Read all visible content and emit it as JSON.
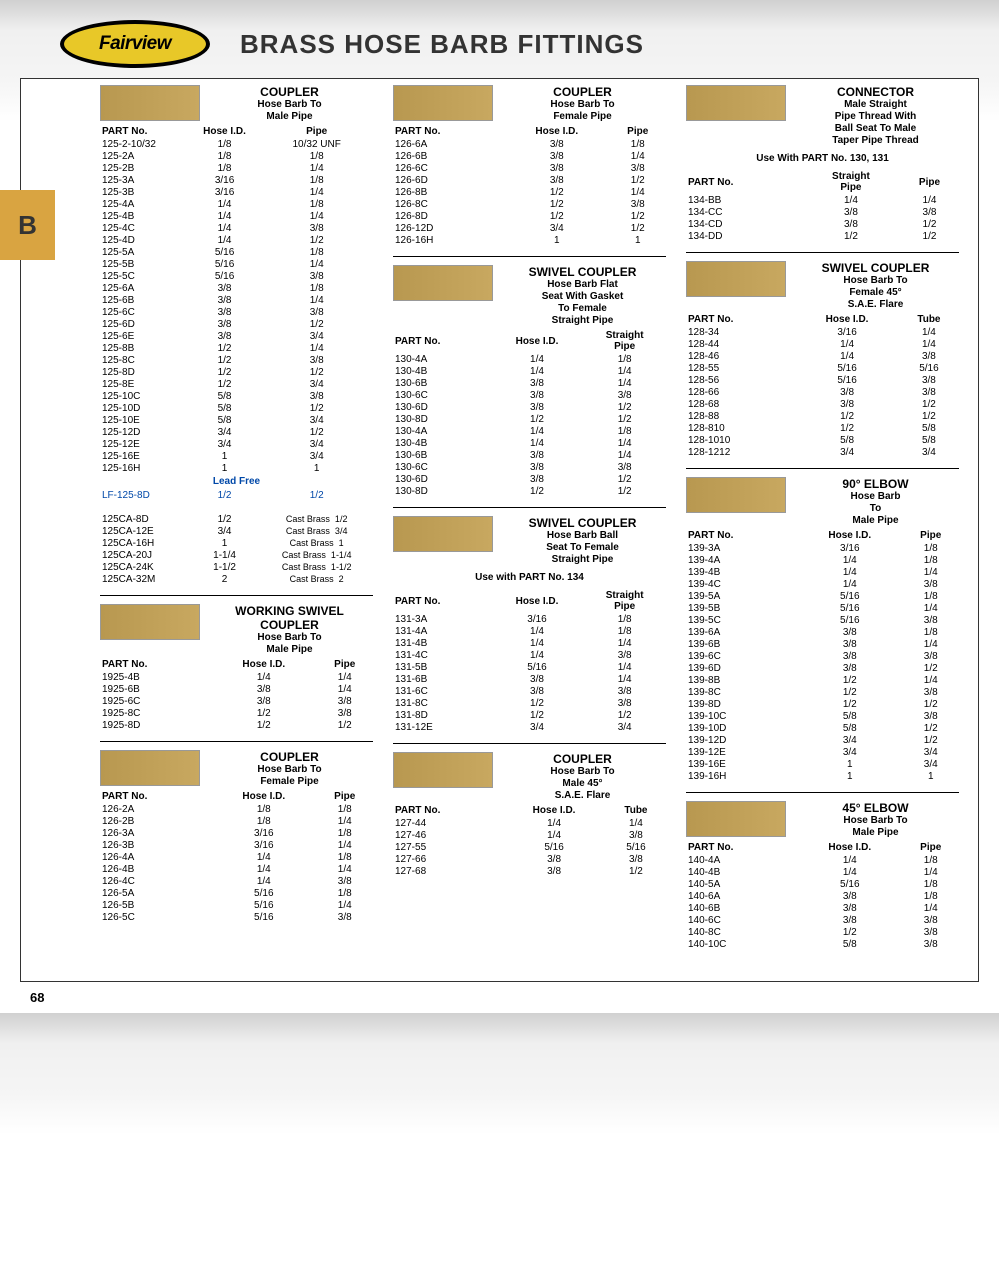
{
  "logo": "Fairview",
  "pageTitle": "BRASS HOSE BARB FITTINGS",
  "tab": "B",
  "pageNum": "68",
  "s1": {
    "t1": "COUPLER",
    "t2": "Hose Barb To\nMale  Pipe",
    "cols": [
      "PART No.",
      "Hose I.D.",
      "Pipe"
    ],
    "rows": [
      [
        "125-2-10/32",
        "1/8",
        "10/32 UNF"
      ],
      [
        "125-2A",
        "1/8",
        "1/8"
      ],
      [
        "125-2B",
        "1/8",
        "1/4"
      ],
      [
        "125-3A",
        "3/16",
        "1/8"
      ],
      [
        "125-3B",
        "3/16",
        "1/4"
      ],
      [
        "125-4A",
        "1/4",
        "1/8"
      ],
      [
        "125-4B",
        "1/4",
        "1/4"
      ],
      [
        "125-4C",
        "1/4",
        "3/8"
      ],
      [
        "125-4D",
        "1/4",
        "1/2"
      ],
      [
        "125-5A",
        "5/16",
        "1/8"
      ],
      [
        "125-5B",
        "5/16",
        "1/4"
      ],
      [
        "125-5C",
        "5/16",
        "3/8"
      ],
      [
        "125-6A",
        "3/8",
        "1/8"
      ],
      [
        "125-6B",
        "3/8",
        "1/4"
      ],
      [
        "125-6C",
        "3/8",
        "3/8"
      ],
      [
        "125-6D",
        "3/8",
        "1/2"
      ],
      [
        "125-6E",
        "3/8",
        "3/4"
      ],
      [
        "125-8B",
        "1/2",
        "1/4"
      ],
      [
        "125-8C",
        "1/2",
        "3/8"
      ],
      [
        "125-8D",
        "1/2",
        "1/2"
      ],
      [
        "125-8E",
        "1/2",
        "3/4"
      ],
      [
        "125-10C",
        "5/8",
        "3/8"
      ],
      [
        "125-10D",
        "5/8",
        "1/2"
      ],
      [
        "125-10E",
        "5/8",
        "3/4"
      ],
      [
        "125-12D",
        "3/4",
        "1/2"
      ],
      [
        "125-12E",
        "3/4",
        "3/4"
      ],
      [
        "125-16E",
        "1",
        "3/4"
      ],
      [
        "125-16H",
        "1",
        "1"
      ]
    ],
    "lfHead": "Lead Free",
    "lf": [
      [
        "LF-125-8D",
        "1/2",
        "1/2"
      ]
    ],
    "cast": [
      [
        "125CA-8D",
        "1/2",
        "Cast Brass",
        "1/2"
      ],
      [
        "125CA-12E",
        "3/4",
        "Cast Brass",
        "3/4"
      ],
      [
        "125CA-16H",
        "1",
        "Cast Brass",
        "1"
      ],
      [
        "125CA-20J",
        "1-1/4",
        "Cast Brass",
        "1-1/4"
      ],
      [
        "125CA-24K",
        "1-1/2",
        "Cast Brass",
        "1-1/2"
      ],
      [
        "125CA-32M",
        "2",
        "Cast Brass",
        "2"
      ]
    ]
  },
  "s2": {
    "t1": "WORKING SWIVEL COUPLER",
    "t2": "Hose Barb To\nMale  Pipe",
    "cols": [
      "PART No.",
      "Hose I.D.",
      "Pipe"
    ],
    "rows": [
      [
        "1925-4B",
        "1/4",
        "1/4"
      ],
      [
        "1925-6B",
        "3/8",
        "1/4"
      ],
      [
        "1925-6C",
        "3/8",
        "3/8"
      ],
      [
        "1925-8C",
        "1/2",
        "3/8"
      ],
      [
        "1925-8D",
        "1/2",
        "1/2"
      ]
    ]
  },
  "s3": {
    "t1": "COUPLER",
    "t2": "Hose Barb To\nFemale  Pipe",
    "cols": [
      "PART No.",
      "Hose I.D.",
      "Pipe"
    ],
    "rows": [
      [
        "126-2A",
        "1/8",
        "1/8"
      ],
      [
        "126-2B",
        "1/8",
        "1/4"
      ],
      [
        "126-3A",
        "3/16",
        "1/8"
      ],
      [
        "126-3B",
        "3/16",
        "1/4"
      ],
      [
        "126-4A",
        "1/4",
        "1/8"
      ],
      [
        "126-4B",
        "1/4",
        "1/4"
      ],
      [
        "126-4C",
        "1/4",
        "3/8"
      ],
      [
        "126-5A",
        "5/16",
        "1/8"
      ],
      [
        "126-5B",
        "5/16",
        "1/4"
      ],
      [
        "126-5C",
        "5/16",
        "3/8"
      ]
    ]
  },
  "s4": {
    "t1": "COUPLER",
    "t2": "Hose Barb To\nFemale  Pipe",
    "cols": [
      "PART No.",
      "Hose I.D.",
      "Pipe"
    ],
    "rows": [
      [
        "126-6A",
        "3/8",
        "1/8"
      ],
      [
        "126-6B",
        "3/8",
        "1/4"
      ],
      [
        "126-6C",
        "3/8",
        "3/8"
      ],
      [
        "126-6D",
        "3/8",
        "1/2"
      ],
      [
        "126-8B",
        "1/2",
        "1/4"
      ],
      [
        "126-8C",
        "1/2",
        "3/8"
      ],
      [
        "126-8D",
        "1/2",
        "1/2"
      ],
      [
        "126-12D",
        "3/4",
        "1/2"
      ],
      [
        "126-16H",
        "1",
        "1"
      ]
    ]
  },
  "s5": {
    "t1": "SWIVEL COUPLER",
    "t2": "Hose Barb Flat\nSeat With Gasket\nTo Female\nStraight Pipe",
    "cols": [
      "PART No.",
      "Hose I.D.",
      "Straight\nPipe"
    ],
    "rows": [
      [
        "130-4A",
        "1/4",
        "1/8"
      ],
      [
        "130-4B",
        "1/4",
        "1/4"
      ],
      [
        "130-6B",
        "3/8",
        "1/4"
      ],
      [
        "130-6C",
        "3/8",
        "3/8"
      ],
      [
        "130-6D",
        "3/8",
        "1/2"
      ],
      [
        "130-8D",
        "1/2",
        "1/2"
      ],
      [
        "130-4A",
        "1/4",
        "1/8"
      ],
      [
        "130-4B",
        "1/4",
        "1/4"
      ],
      [
        "130-6B",
        "3/8",
        "1/4"
      ],
      [
        "130-6C",
        "3/8",
        "3/8"
      ],
      [
        "130-6D",
        "3/8",
        "1/2"
      ],
      [
        "130-8D",
        "1/2",
        "1/2"
      ]
    ]
  },
  "s6": {
    "t1": "SWIVEL COUPLER",
    "t2": "Hose Barb Ball\nSeat To Female\nStraight Pipe",
    "note": "Use with PART No. 134",
    "cols": [
      "PART No.",
      "Hose I.D.",
      "Straight\nPipe"
    ],
    "rows": [
      [
        "131-3A",
        "3/16",
        "1/8"
      ],
      [
        "131-4A",
        "1/4",
        "1/8"
      ],
      [
        "131-4B",
        "1/4",
        "1/4"
      ],
      [
        "131-4C",
        "1/4",
        "3/8"
      ],
      [
        "131-5B",
        "5/16",
        "1/4"
      ],
      [
        "131-6B",
        "3/8",
        "1/4"
      ],
      [
        "131-6C",
        "3/8",
        "3/8"
      ],
      [
        "131-8C",
        "1/2",
        "3/8"
      ],
      [
        "131-8D",
        "1/2",
        "1/2"
      ],
      [
        "131-12E",
        "3/4",
        "3/4"
      ]
    ]
  },
  "s7": {
    "t1": "COUPLER",
    "t2": "Hose Barb To\nMale 45°\nS.A.E. Flare",
    "cols": [
      "PART No.",
      "Hose I.D.",
      "Tube"
    ],
    "rows": [
      [
        "127-44",
        "1/4",
        "1/4"
      ],
      [
        "127-46",
        "1/4",
        "3/8"
      ],
      [
        "127-55",
        "5/16",
        "5/16"
      ],
      [
        "127-66",
        "3/8",
        "3/8"
      ],
      [
        "127-68",
        "3/8",
        "1/2"
      ]
    ]
  },
  "s8": {
    "t1": "CONNECTOR",
    "t2": "Male Straight\nPipe Thread With\nBall Seat To Male\nTaper Pipe Thread",
    "note": "Use With PART No. 130, 131",
    "cols": [
      "PART No.",
      "Straight\nPipe",
      "Pipe"
    ],
    "rows": [
      [
        "134-BB",
        "1/4",
        "1/4"
      ],
      [
        "134-CC",
        "3/8",
        "3/8"
      ],
      [
        "134-CD",
        "3/8",
        "1/2"
      ],
      [
        "134-DD",
        "1/2",
        "1/2"
      ]
    ]
  },
  "s9": {
    "t1": "SWIVEL COUPLER",
    "t2": "Hose Barb To\nFemale 45°\nS.A.E. Flare",
    "cols": [
      "PART No.",
      "Hose I.D.",
      "Tube"
    ],
    "rows": [
      [
        "128-34",
        "3/16",
        "1/4"
      ],
      [
        "128-44",
        "1/4",
        "1/4"
      ],
      [
        "128-46",
        "1/4",
        "3/8"
      ],
      [
        "128-55",
        "5/16",
        "5/16"
      ],
      [
        "128-56",
        "5/16",
        "3/8"
      ],
      [
        "128-66",
        "3/8",
        "3/8"
      ],
      [
        "128-68",
        "3/8",
        "1/2"
      ],
      [
        "128-88",
        "1/2",
        "1/2"
      ],
      [
        "128-810",
        "1/2",
        "5/8"
      ],
      [
        "128-1010",
        "5/8",
        "5/8"
      ],
      [
        "128-1212",
        "3/4",
        "3/4"
      ]
    ]
  },
  "s10": {
    "t1": "90° ELBOW",
    "t2": "Hose Barb\nTo\nMale  Pipe",
    "cols": [
      "PART No.",
      "Hose I.D.",
      "Pipe"
    ],
    "rows": [
      [
        "139-3A",
        "3/16",
        "1/8"
      ],
      [
        "139-4A",
        "1/4",
        "1/8"
      ],
      [
        "139-4B",
        "1/4",
        "1/4"
      ],
      [
        "139-4C",
        "1/4",
        "3/8"
      ],
      [
        "139-5A",
        "5/16",
        "1/8"
      ],
      [
        "139-5B",
        "5/16",
        "1/4"
      ],
      [
        "139-5C",
        "5/16",
        "3/8"
      ],
      [
        "139-6A",
        "3/8",
        "1/8"
      ],
      [
        "139-6B",
        "3/8",
        "1/4"
      ],
      [
        "139-6C",
        "3/8",
        "3/8"
      ],
      [
        "139-6D",
        "3/8",
        "1/2"
      ],
      [
        "139-8B",
        "1/2",
        "1/4"
      ],
      [
        "139-8C",
        "1/2",
        "3/8"
      ],
      [
        "139-8D",
        "1/2",
        "1/2"
      ],
      [
        "139-10C",
        "5/8",
        "3/8"
      ],
      [
        "139-10D",
        "5/8",
        "1/2"
      ],
      [
        "139-12D",
        "3/4",
        "1/2"
      ],
      [
        "139-12E",
        "3/4",
        "3/4"
      ],
      [
        "139-16E",
        "1",
        "3/4"
      ],
      [
        "139-16H",
        "1",
        "1"
      ]
    ]
  },
  "s11": {
    "t1": "45° ELBOW",
    "t2": "Hose Barb To\nMale  Pipe",
    "cols": [
      "PART No.",
      "Hose I.D.",
      "Pipe"
    ],
    "rows": [
      [
        "140-4A",
        "1/4",
        "1/8"
      ],
      [
        "140-4B",
        "1/4",
        "1/4"
      ],
      [
        "140-5A",
        "5/16",
        "1/8"
      ],
      [
        "140-6A",
        "3/8",
        "1/8"
      ],
      [
        "140-6B",
        "3/8",
        "1/4"
      ],
      [
        "140-6C",
        "3/8",
        "3/8"
      ],
      [
        "140-8C",
        "1/2",
        "3/8"
      ],
      [
        "140-10C",
        "5/8",
        "3/8"
      ]
    ]
  }
}
